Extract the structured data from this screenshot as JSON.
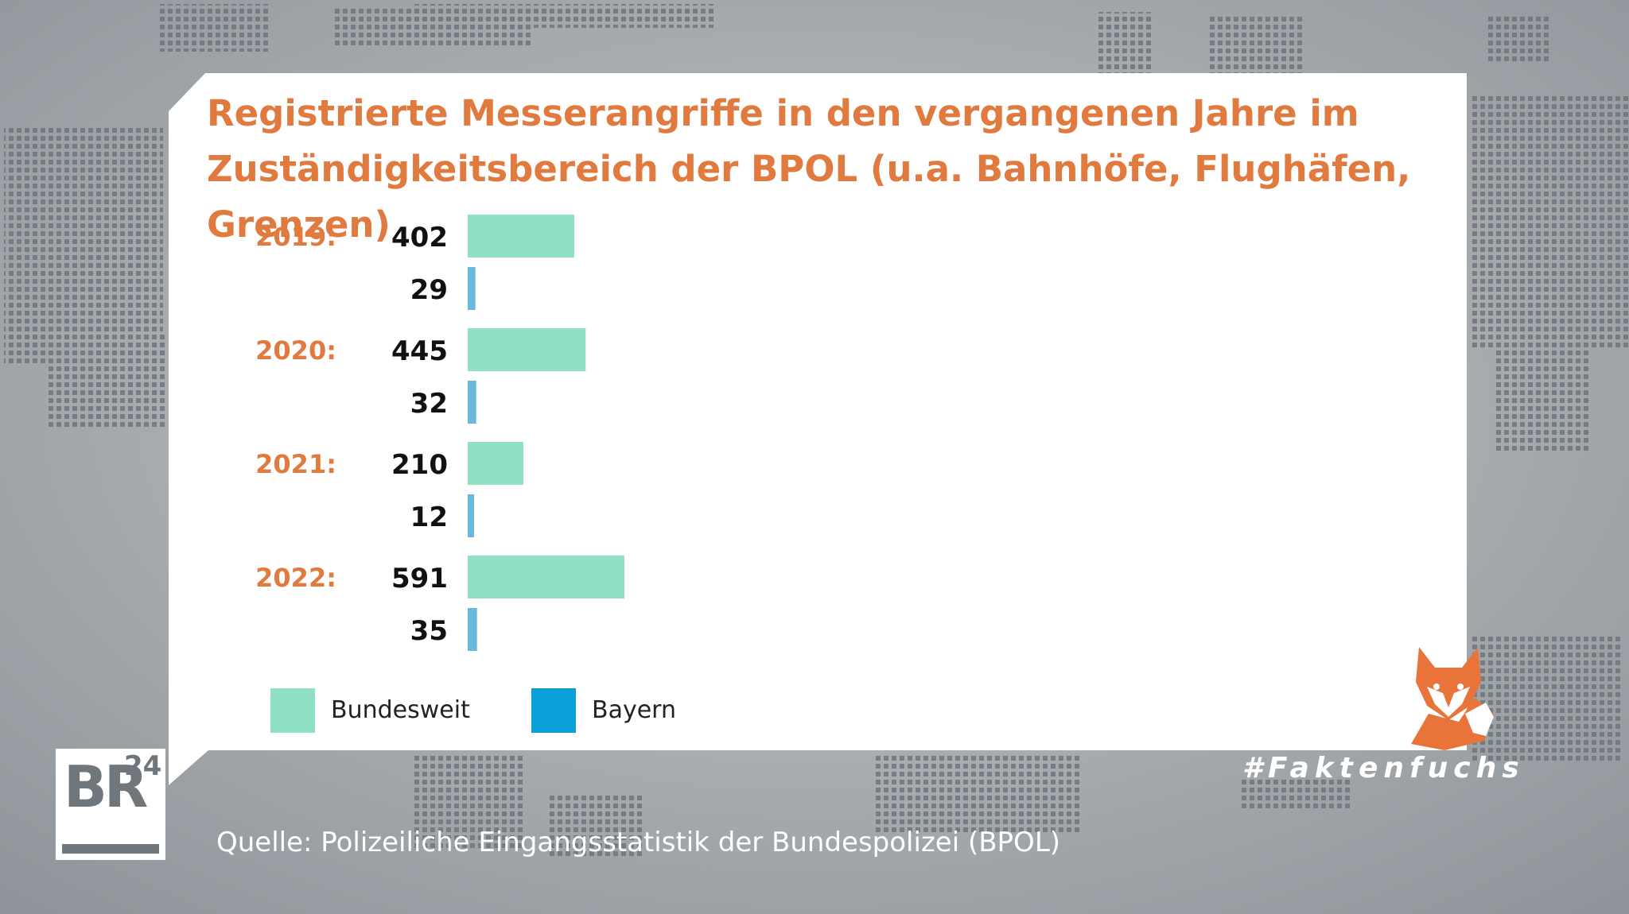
{
  "chart_data": {
    "type": "bar",
    "orientation": "horizontal",
    "title": "Registrierte Messerangriffe in den vergangenen Jahre im Zuständigkeitsbereich der BPOL (u.a. Bahnhöfe, Flughäfen, Grenzen)",
    "categories": [
      "2019:",
      "2020:",
      "2021:",
      "2022:"
    ],
    "series": [
      {
        "name": "Bundesweit",
        "color": "#8fe0c4",
        "values": [
          402,
          445,
          210,
          591
        ]
      },
      {
        "name": "Bayern",
        "color": "#0b9fd8",
        "bar_color": "#6bb8da",
        "values": [
          29,
          32,
          12,
          35
        ]
      }
    ],
    "legend_position": "bottom-left",
    "grid": false
  },
  "source": "Quelle: Polizeiliche Eingangsstatistik der Bundespolizei (BPOL)",
  "logo": {
    "letters": "BR",
    "number": "24"
  },
  "hashtag": "#Faktenfuchs",
  "colors": {
    "accent": "#e07a3e",
    "background": "#9aa0a6",
    "card": "#ffffff"
  }
}
